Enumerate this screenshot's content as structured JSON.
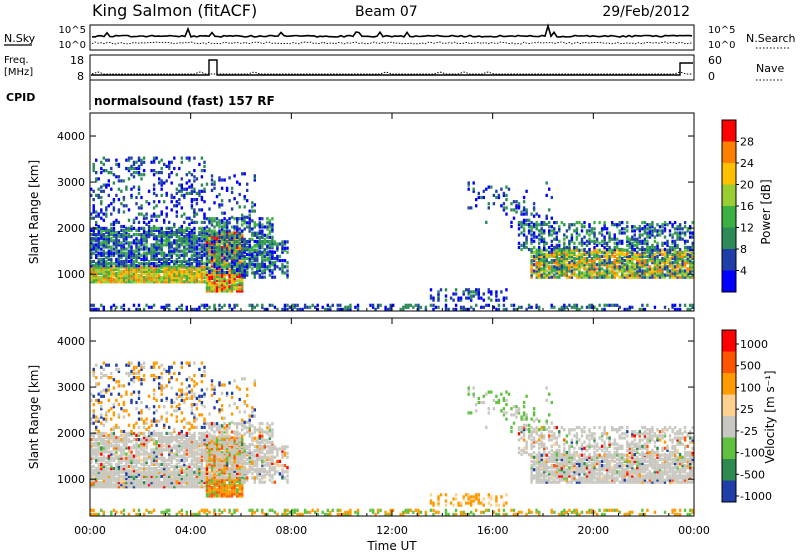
{
  "header": {
    "station": "King Salmon (fitACF)",
    "beam": "Beam 07",
    "date": "29/Feb/2012"
  },
  "noise_panel": {
    "left_label": "N.Sky",
    "right_label": "N.Search",
    "left_ticks": [
      "10^5",
      "10^0"
    ],
    "right_ticks": [
      "10^5",
      "10^0"
    ]
  },
  "freq_panel": {
    "left_label_1": "Freq.",
    "left_label_2": "[MHz]",
    "right_label": "Nave",
    "left_ticks": [
      "18",
      "8"
    ],
    "right_ticks": [
      "60",
      "0"
    ]
  },
  "cpid": {
    "label": "CPID",
    "value": "normalsound (fast) 157 RF"
  },
  "colors": {
    "power_scale": [
      "#0000ff",
      "#1f3fa8",
      "#2e8b57",
      "#3cb043",
      "#9acd32",
      "#ffc000",
      "#ff7f00",
      "#ff0000"
    ],
    "velocity_scale": [
      "#ff0000",
      "#ff5500",
      "#ff9a00",
      "#ffd090",
      "#c8c8c0",
      "#60c040",
      "#2f8a4f",
      "#1f3fa8"
    ],
    "ground_scatter": "#c8c8c0"
  },
  "chart_data": [
    {
      "type": "heatmap",
      "name": "power-panel",
      "ylabel": "Slant Range [km]",
      "ylim": [
        200,
        4500
      ],
      "yticks": [
        "1000",
        "2000",
        "3000",
        "4000"
      ],
      "colorbar_label": "Power [dB]",
      "colorbar_ticks": [
        "4",
        "8",
        "12",
        "16",
        "20",
        "24",
        "28"
      ],
      "colorbar_range": [
        0,
        32
      ]
    },
    {
      "type": "heatmap",
      "name": "velocity-panel",
      "ylabel": "Slant Range [km]",
      "ylim": [
        200,
        4500
      ],
      "yticks": [
        "1000",
        "2000",
        "3000",
        "4000"
      ],
      "colorbar_label": "Velocity [m s⁻¹]",
      "colorbar_ticks": [
        "1000",
        "500",
        "100",
        "25",
        "-25",
        "-100",
        "-500",
        "-1000"
      ]
    }
  ],
  "time_axis": {
    "xlabel": "Time UT",
    "ticks": [
      "00:00",
      "04:00",
      "08:00",
      "12:00",
      "16:00",
      "20:00",
      "00:00"
    ],
    "range_hours": [
      0,
      24
    ]
  }
}
